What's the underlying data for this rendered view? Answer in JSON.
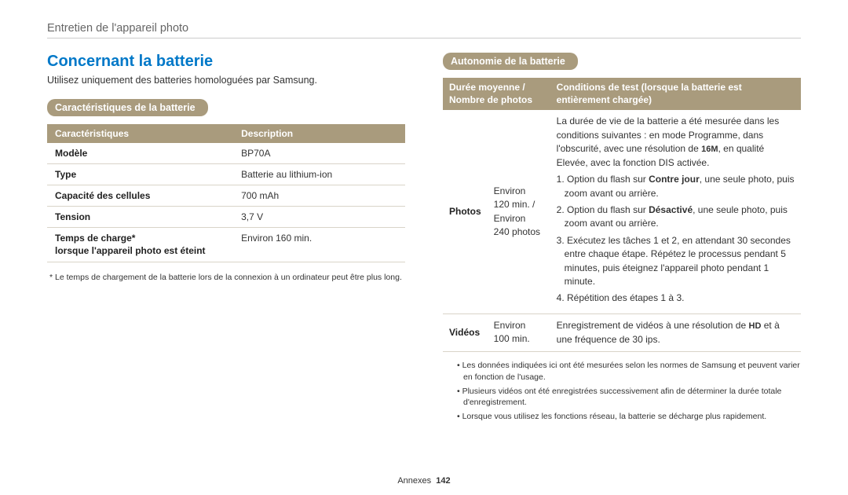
{
  "header": {
    "title": "Entretien de l'appareil photo"
  },
  "left": {
    "section_title": "Concernant la batterie",
    "intro": "Utilisez uniquement des batteries homologuées par Samsung.",
    "badge": "Caractéristiques de la batterie",
    "table": {
      "header_col1": "Caractéristiques",
      "header_col2": "Description",
      "rows": [
        {
          "label": "Modèle",
          "value": "BP70A",
          "sub": ""
        },
        {
          "label": "Type",
          "value": "Batterie au lithium-ion",
          "sub": ""
        },
        {
          "label": "Capacité des cellules",
          "value": "700 mAh",
          "sub": ""
        },
        {
          "label": "Tension",
          "value": "3,7 V",
          "sub": ""
        },
        {
          "label": "Temps de charge*",
          "value": "Environ 160 min.",
          "sub": "lorsque l'appareil photo est éteint"
        }
      ]
    },
    "footnote": "* Le temps de chargement de la batterie lors de la connexion à un ordinateur peut être plus long."
  },
  "right": {
    "badge": "Autonomie de la batterie",
    "table": {
      "header_col1_line1": "Durée moyenne /",
      "header_col1_line2": "Nombre de photos",
      "header_col2_line1": "Conditions de test (lorsque la batterie est",
      "header_col2_line2": "entièrement chargée)",
      "row_photos": {
        "label": "Photos",
        "mid": "Environ 120 min. / Environ 240 photos",
        "c_intro_p1": "La durée de vie de la batterie a été mesurée dans les conditions suivantes : en mode Programme, dans l'obscurité, avec une résolution de ",
        "c_intro_res": "16M",
        "c_intro_p2": ", en qualité Elevée, avec la fonction DIS activée.",
        "c_step1_a": "1. Option du flash sur ",
        "c_step1_b": "Contre jour",
        "c_step1_c": ", une seule photo, puis zoom avant ou arrière.",
        "c_step2_a": "2. Option du flash sur ",
        "c_step2_b": "Désactivé",
        "c_step2_c": ", une seule photo, puis zoom avant ou arrière.",
        "c_step3": "3. Exécutez les tâches 1 et 2, en attendant 30 secondes entre chaque étape. Répétez le processus pendant 5 minutes, puis éteignez l'appareil photo pendant 1 minute.",
        "c_step4": "4. Répétition des étapes 1 à 3."
      },
      "row_videos": {
        "label": "Vidéos",
        "mid": "Environ 100 min.",
        "c_a": "Enregistrement de vidéos à une résolution de ",
        "c_res": "HD",
        "c_b": " et à une fréquence de 30 ips."
      }
    },
    "bullets": [
      "Les données indiquées ici ont été mesurées selon les normes de Samsung et peuvent varier en fonction de l'usage.",
      "Plusieurs vidéos ont été enregistrées successivement afin de déterminer la durée totale d'enregistrement.",
      "Lorsque vous utilisez les fonctions réseau, la batterie se décharge plus rapidement."
    ]
  },
  "footer": {
    "label": "Annexes",
    "page": "142"
  }
}
